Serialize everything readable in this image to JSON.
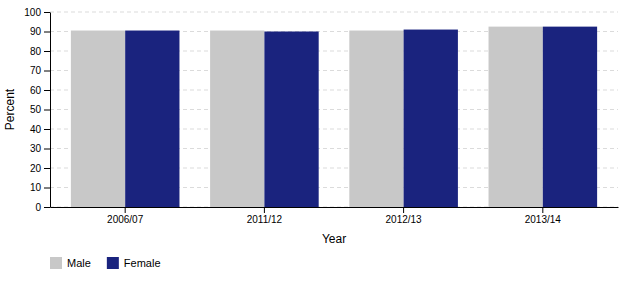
{
  "chart_data": {
    "type": "bar",
    "categories": [
      "2006/07",
      "2011/12",
      "2012/13",
      "2013/14"
    ],
    "series": [
      {
        "name": "Male",
        "color": "#c8c8c8",
        "values": [
          90.5,
          90.5,
          90.5,
          92.5
        ]
      },
      {
        "name": "Female",
        "color": "#1a237e",
        "values": [
          90.5,
          90.0,
          91.0,
          92.5
        ]
      }
    ],
    "xlabel": "Year",
    "ylabel": "Percent",
    "ylim": [
      0,
      100
    ],
    "yticks": [
      0,
      10,
      20,
      30,
      40,
      50,
      60,
      70,
      80,
      90,
      100
    ],
    "grid": true,
    "legend": "bottom"
  }
}
